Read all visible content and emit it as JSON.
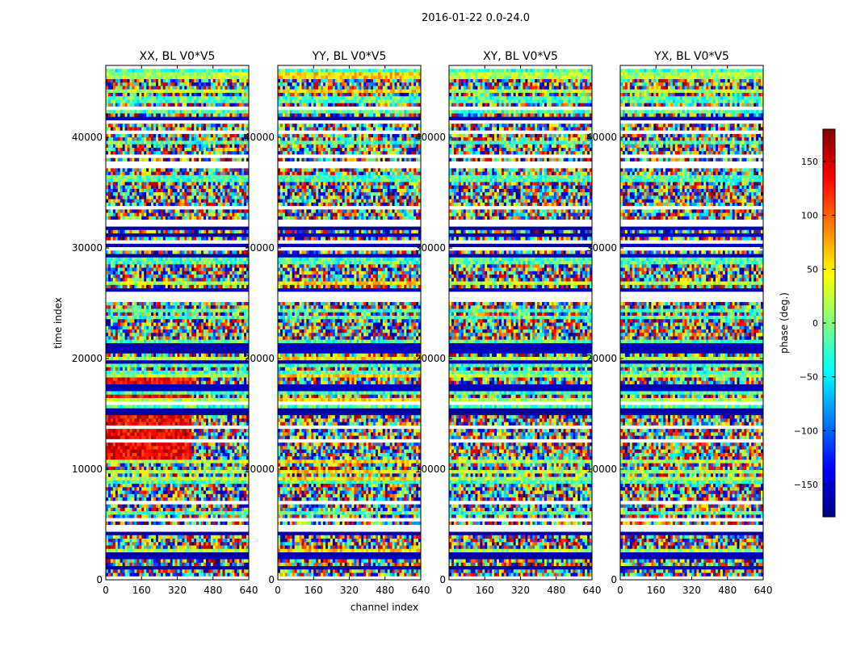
{
  "suptitle": "2016-01-22 0.0-24.0",
  "xlabel": "channel index",
  "ylabel": "time index",
  "colorbar": {
    "label": "phase (deg.)",
    "range": [
      -180,
      180
    ],
    "ticks": [
      -150,
      -100,
      -50,
      0,
      50,
      100,
      150
    ],
    "tick_labels": [
      "−150",
      "−100",
      "−50",
      "0",
      "50",
      "100",
      "150"
    ],
    "colors": [
      "#00007f",
      "#0000ff",
      "#007fff",
      "#00ffff",
      "#7fff7f",
      "#ffff00",
      "#ff7f00",
      "#ff0000",
      "#7f0000"
    ]
  },
  "chart_data": [
    {
      "type": "heatmap",
      "title": "XX, BL V0*V5",
      "xlabel": "",
      "ylabel": "time index",
      "xlim": [
        0,
        640
      ],
      "ylim": [
        0,
        46500
      ],
      "xticks": [
        0,
        160,
        320,
        480,
        640
      ],
      "xtick_labels": [
        "0",
        "160",
        "320",
        "480",
        "640"
      ],
      "yticks": [
        0,
        10000,
        20000,
        30000,
        40000
      ],
      "ytick_labels": [
        "0",
        "10000",
        "20000",
        "30000",
        "40000"
      ],
      "value": "phase (deg.)",
      "zlim": [
        -180,
        180
      ]
    },
    {
      "type": "heatmap",
      "title": "YY, BL V0*V5",
      "xlabel": "channel index",
      "ylabel": "",
      "xlim": [
        0,
        640
      ],
      "ylim": [
        0,
        46500
      ],
      "xticks": [
        0,
        160,
        320,
        480,
        640
      ],
      "xtick_labels": [
        "0",
        "160",
        "320",
        "480",
        "640"
      ],
      "yticks": [
        0,
        10000,
        20000,
        30000,
        40000
      ],
      "ytick_labels": [
        "0",
        "10000",
        "20000",
        "30000",
        "40000"
      ],
      "value": "phase (deg.)",
      "zlim": [
        -180,
        180
      ]
    },
    {
      "type": "heatmap",
      "title": "XY, BL V0*V5",
      "xlabel": "",
      "ylabel": "",
      "xlim": [
        0,
        640
      ],
      "ylim": [
        0,
        46500
      ],
      "xticks": [
        0,
        160,
        320,
        480,
        640
      ],
      "xtick_labels": [
        "0",
        "160",
        "320",
        "480",
        "640"
      ],
      "yticks": [
        0,
        10000,
        20000,
        30000,
        40000
      ],
      "ytick_labels": [
        "0",
        "10000",
        "20000",
        "30000",
        "40000"
      ],
      "value": "phase (deg.)",
      "zlim": [
        -180,
        180
      ]
    },
    {
      "type": "heatmap",
      "title": "YX, BL V0*V5",
      "xlabel": "",
      "ylabel": "",
      "xlim": [
        0,
        640
      ],
      "ylim": [
        0,
        46500
      ],
      "xticks": [
        0,
        160,
        320,
        480,
        640
      ],
      "xtick_labels": [
        "0",
        "160",
        "320",
        "480",
        "640"
      ],
      "yticks": [
        0,
        10000,
        20000,
        30000,
        40000
      ],
      "ytick_labels": [
        "0",
        "10000",
        "20000",
        "30000",
        "40000"
      ],
      "value": "phase (deg.)",
      "zlim": [
        -180,
        180
      ]
    }
  ]
}
